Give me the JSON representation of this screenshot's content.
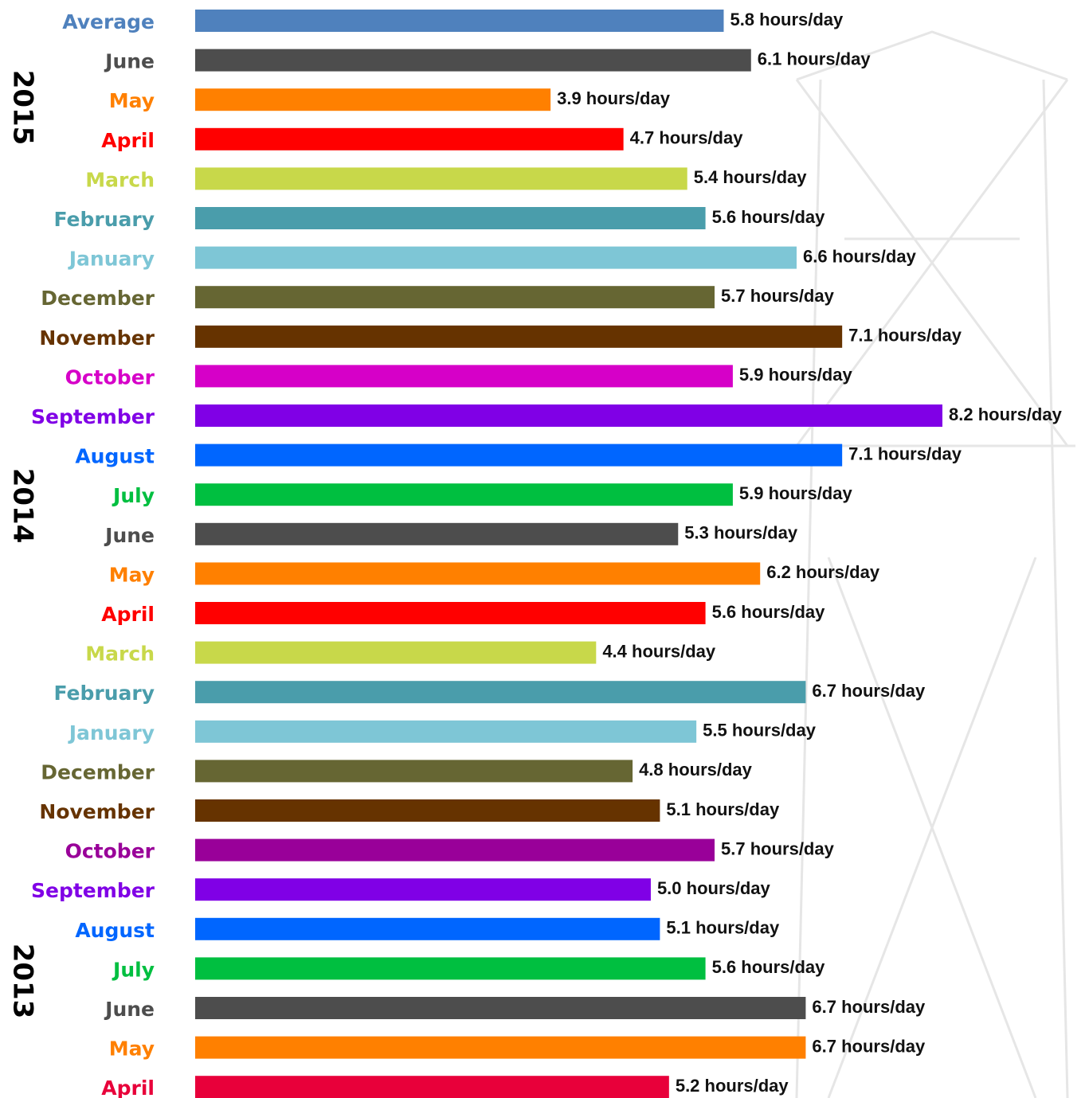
{
  "chart_data": {
    "type": "bar",
    "orientation": "horizontal",
    "categories": [
      "Average",
      "June",
      "May",
      "April",
      "March",
      "February",
      "January",
      "December",
      "November",
      "October",
      "September",
      "August",
      "July",
      "June",
      "May",
      "April",
      "March",
      "February",
      "January",
      "December",
      "November",
      "October",
      "September",
      "August",
      "July",
      "June",
      "May",
      "April"
    ],
    "values": [
      5.8,
      6.1,
      3.9,
      4.7,
      5.4,
      5.6,
      6.6,
      5.7,
      7.1,
      5.9,
      8.2,
      7.1,
      5.9,
      5.3,
      6.2,
      5.6,
      4.4,
      6.7,
      5.5,
      4.8,
      5.1,
      5.7,
      5.0,
      5.1,
      5.6,
      6.7,
      6.7,
      5.2
    ],
    "value_labels": [
      "5.8 hours/day",
      "6.1 hours/day",
      "3.9 hours/day",
      "4.7 hours/day",
      "5.4 hours/day",
      "5.6 hours/day",
      "6.6 hours/day",
      "5.7 hours/day",
      "7.1 hours/day",
      "5.9 hours/day",
      "8.2 hours/day",
      "7.1 hours/day",
      "5.9 hours/day",
      "5.3 hours/day",
      "6.2 hours/day",
      "5.6 hours/day",
      "4.4 hours/day",
      "6.7 hours/day",
      "5.5 hours/day",
      "4.8 hours/day",
      "5.1 hours/day",
      "5.7 hours/day",
      "5.0 hours/day",
      "5.1 hours/day",
      "5.6 hours/day",
      "6.7 hours/day",
      "6.7 hours/day",
      "5.2 hours/day"
    ],
    "colors": [
      "#4f81bd",
      "#4d4d4d",
      "#ff8000",
      "#ff0000",
      "#c8d84a",
      "#4a9dab",
      "#7ec6d6",
      "#666633",
      "#663300",
      "#d600c8",
      "#8000e6",
      "#0066ff",
      "#00bf40",
      "#4d4d4d",
      "#ff8000",
      "#ff0000",
      "#c8d84a",
      "#4a9dab",
      "#7ec6d6",
      "#666633",
      "#663300",
      "#990099",
      "#8000e6",
      "#0066ff",
      "#00bf40",
      "#4d4d4d",
      "#ff8000",
      "#e8003a"
    ],
    "year_labels": [
      "2015",
      "2014",
      "2013"
    ]
  }
}
